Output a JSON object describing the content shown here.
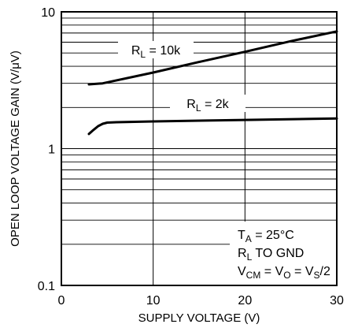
{
  "chart_data": {
    "type": "line",
    "xlabel": "SUPPLY VOLTAGE (V)",
    "ylabel": "OPEN LOOP VOLTAGE GAIN (V/μV)",
    "xlim": [
      0,
      30
    ],
    "ylim": [
      0.1,
      10
    ],
    "y_scale": "log",
    "grid": true,
    "x_ticks": [
      {
        "value": 0,
        "label": "0"
      },
      {
        "value": 10,
        "label": "10"
      },
      {
        "value": 20,
        "label": "20"
      },
      {
        "value": 30,
        "label": "30"
      }
    ],
    "y_ticks": [
      {
        "value": 0.1,
        "label": "0.1"
      },
      {
        "value": 1,
        "label": "1"
      },
      {
        "value": 10,
        "label": "10"
      }
    ],
    "series": [
      {
        "label": {
          "main": "R",
          "sub": "L",
          "rest": " = 10k"
        },
        "x": [
          3,
          4.5,
          10,
          15,
          20,
          25,
          30
        ],
        "y": [
          2.95,
          3.0,
          3.6,
          4.3,
          5.1,
          6.1,
          7.2
        ]
      },
      {
        "label": {
          "main": "R",
          "sub": "L",
          "rest": " = 2k"
        },
        "x": [
          3,
          3.5,
          4,
          4.5,
          5,
          6,
          10,
          20,
          30
        ],
        "y": [
          1.28,
          1.37,
          1.46,
          1.52,
          1.55,
          1.56,
          1.58,
          1.62,
          1.66
        ]
      }
    ],
    "annotation": [
      {
        "main": "T",
        "sub": "A",
        "rest": " = 25°C"
      },
      {
        "main": "R",
        "sub": "L",
        "rest": " TO GND"
      },
      {
        "parts": [
          {
            "t": "V"
          },
          {
            "t": "CM",
            "sub": true
          },
          {
            "t": " = V"
          },
          {
            "t": "O",
            "sub": true
          },
          {
            "t": " = V"
          },
          {
            "t": "S",
            "sub": true
          },
          {
            "t": "/2"
          }
        ]
      }
    ]
  }
}
